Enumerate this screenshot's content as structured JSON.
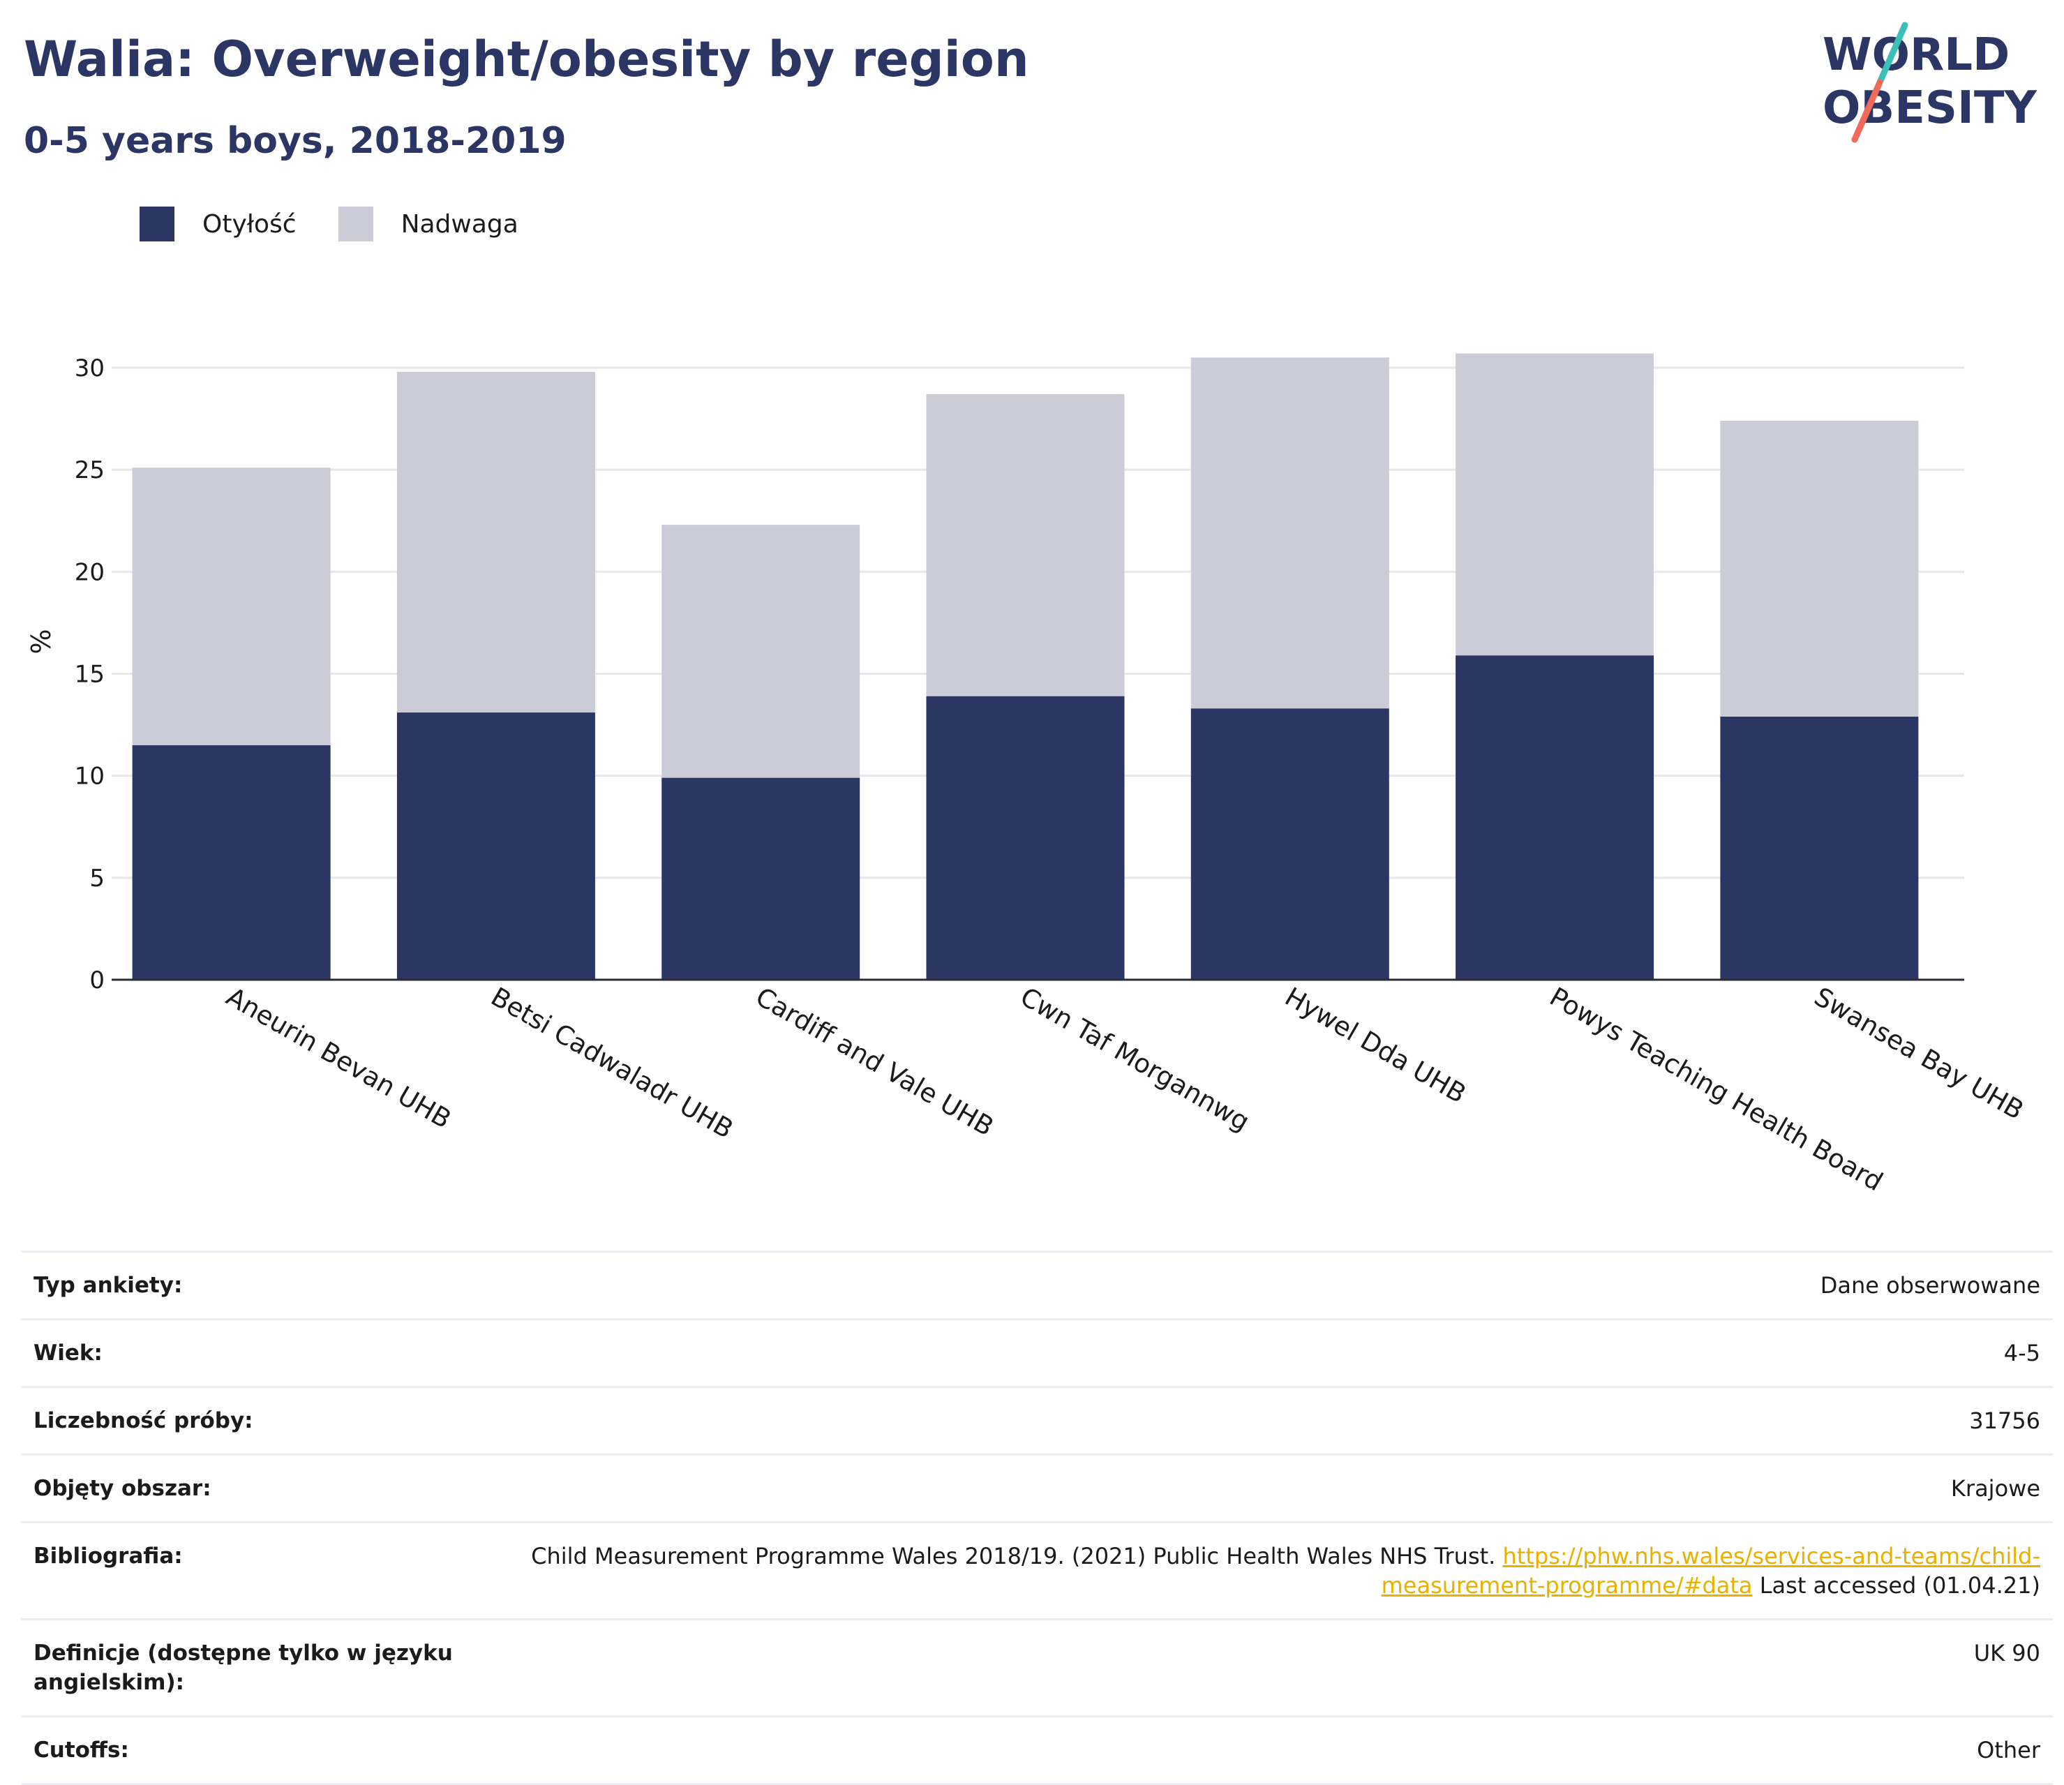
{
  "header": {
    "title": "Walia: Overweight/obesity by region",
    "subtitle": "0-5 years boys, 2018-2019"
  },
  "logo": {
    "line1": "WORLD",
    "line2": "OBESITY",
    "icon": "world-obesity-logo"
  },
  "colors": {
    "obesity": "#2b3664",
    "overweight": "#cbccd8",
    "grid": "#e6e6ec",
    "link": "#e8b100"
  },
  "chart_data": {
    "type": "bar",
    "stacked": true,
    "categories": [
      "Aneurin Bevan UHB",
      "Betsi Cadwaladr UHB",
      "Cardiff and Vale UHB",
      "Cwn Taf Morgannwg",
      "Hywel Dda UHB",
      "Powys Teaching Health Board",
      "Swansea Bay UHB"
    ],
    "series": [
      {
        "name": "Otyłość",
        "values": [
          11.5,
          13.1,
          9.9,
          13.9,
          13.3,
          15.9,
          12.9
        ]
      },
      {
        "name": "Nadwaga",
        "values": [
          13.6,
          16.7,
          12.4,
          14.8,
          17.2,
          14.8,
          14.5
        ]
      }
    ],
    "ylabel": "%",
    "ylim": [
      0,
      30
    ],
    "yticks": [
      "0",
      "5",
      "10",
      "15",
      "20",
      "25",
      "30"
    ],
    "grid": true,
    "legend_position": "top-left"
  },
  "info": [
    {
      "key": "Typ ankiety:",
      "value": "Dane obserwowane"
    },
    {
      "key": "Wiek:",
      "value": "4-5"
    },
    {
      "key": "Liczebność próby:",
      "value": "31756"
    },
    {
      "key": "Objęty obszar:",
      "value": "Krajowe"
    },
    {
      "key": "Bibliografia:",
      "value_pre": "Child Measurement Programme Wales 2018/19. (2021) Public Health Wales NHS Trust. ",
      "link": "https://phw.nhs.wales/services-and-teams/child-measurement-programme/#data",
      "value_post": " Last accessed (01.04.21)"
    },
    {
      "key": "Definicje (dostępne tylko w języku angielskim):",
      "value": "UK 90"
    },
    {
      "key": "Cutoffs:",
      "value": "Other"
    }
  ]
}
